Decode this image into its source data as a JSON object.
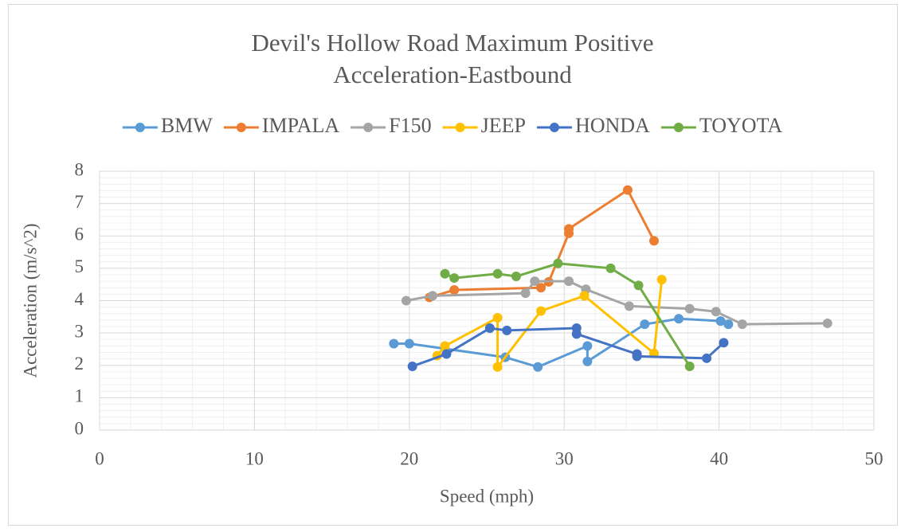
{
  "chart_data": {
    "type": "scatter-line",
    "title": "Devil's Hollow Road Maximum Positive Acceleration-Eastbound",
    "x_label": "Speed (mph)",
    "y_label": "Acceleration (m/s^2)",
    "xlim": [
      0,
      50
    ],
    "xticks": [
      0,
      10,
      20,
      30,
      40,
      50
    ],
    "ylim": [
      0,
      8
    ],
    "yticks": [
      0,
      1,
      2,
      3,
      4,
      5,
      6,
      7,
      8
    ],
    "grid": true,
    "minor_grid": true,
    "legend": "top",
    "series": [
      {
        "name": "BMW",
        "color": "#5b9bd5",
        "x": [
          19.0,
          20.0,
          26.2,
          28.3,
          31.5,
          31.5,
          35.2,
          37.4,
          40.1,
          40.6
        ],
        "values": [
          2.67,
          2.67,
          2.25,
          1.95,
          2.6,
          2.12,
          3.27,
          3.44,
          3.37,
          3.27
        ]
      },
      {
        "name": "IMPALA",
        "color": "#ed7d31",
        "x": [
          21.3,
          22.9,
          28.5,
          29.0,
          30.3,
          30.3,
          34.1,
          35.8
        ],
        "values": [
          4.1,
          4.33,
          4.4,
          4.58,
          6.08,
          6.22,
          7.42,
          5.85
        ]
      },
      {
        "name": "F150",
        "color": "#a5a5a5",
        "x": [
          19.8,
          21.5,
          27.5,
          28.1,
          30.3,
          31.4,
          34.2,
          38.1,
          39.8,
          41.5,
          47.0
        ],
        "values": [
          4.0,
          4.15,
          4.23,
          4.6,
          4.6,
          4.35,
          3.83,
          3.75,
          3.66,
          3.27,
          3.3
        ]
      },
      {
        "name": "JEEP",
        "color": "#ffc000",
        "x": [
          21.8,
          22.3,
          25.7,
          25.7,
          28.5,
          31.3,
          35.8,
          36.3
        ],
        "values": [
          2.3,
          2.6,
          3.47,
          1.95,
          3.68,
          4.15,
          2.37,
          4.65
        ]
      },
      {
        "name": "HONDA",
        "color": "#4472c4",
        "x": [
          20.2,
          22.4,
          25.2,
          26.3,
          30.8,
          30.8,
          34.7,
          34.7,
          39.2,
          40.3
        ],
        "values": [
          1.97,
          2.35,
          3.15,
          3.08,
          3.15,
          2.97,
          2.35,
          2.28,
          2.22,
          2.7
        ]
      },
      {
        "name": "TOYOTA",
        "color": "#70ad47",
        "x": [
          22.3,
          22.9,
          25.7,
          26.9,
          29.6,
          33.0,
          34.8,
          38.1
        ],
        "values": [
          4.83,
          4.7,
          4.83,
          4.75,
          5.15,
          5.0,
          4.47,
          1.97
        ]
      }
    ]
  }
}
